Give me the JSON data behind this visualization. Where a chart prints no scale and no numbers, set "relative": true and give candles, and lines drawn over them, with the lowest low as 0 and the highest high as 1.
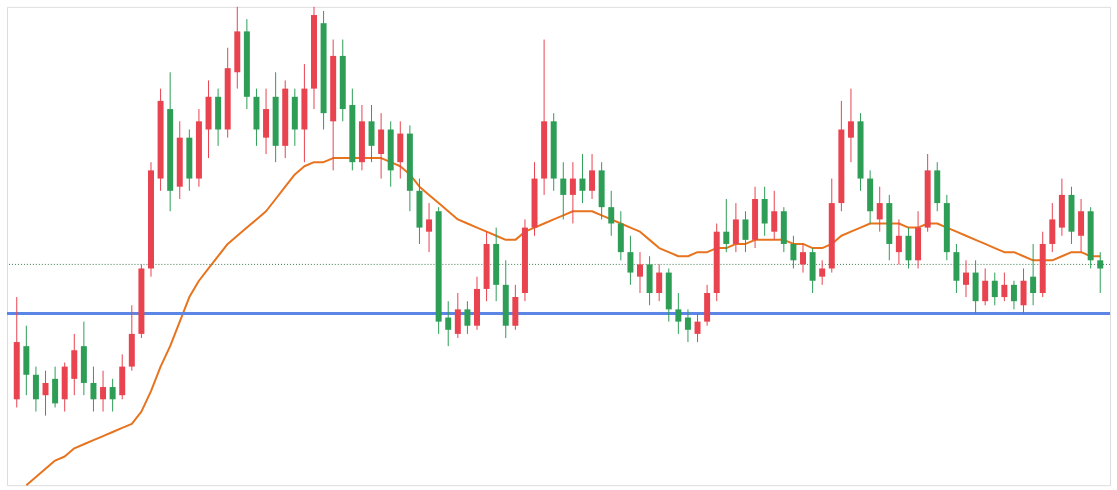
{
  "chart_data": {
    "type": "candlestick",
    "relative": true,
    "categories": [
      null,
      null,
      null,
      null,
      null,
      null,
      null,
      null,
      null,
      null,
      null,
      null,
      null,
      null,
      null,
      null,
      null,
      null,
      null,
      null,
      null,
      null,
      null,
      null,
      null,
      null,
      null,
      null,
      null,
      null,
      null,
      null,
      null,
      null,
      null,
      null,
      null,
      null,
      null,
      null,
      null,
      null,
      null,
      null,
      null,
      null,
      null,
      null,
      null,
      null,
      null,
      null,
      null,
      null,
      null,
      null,
      null,
      null,
      null,
      null,
      null,
      null,
      null,
      null,
      null,
      null,
      null,
      null,
      null,
      null,
      null,
      null,
      null,
      null,
      null,
      null,
      null,
      null,
      null,
      null,
      null,
      null,
      null,
      null,
      null,
      null,
      null,
      null,
      null,
      null,
      null,
      null,
      null,
      null,
      null,
      null,
      null,
      null,
      null,
      null,
      null,
      null,
      null,
      null,
      null,
      null,
      null,
      null,
      null,
      null,
      null,
      null,
      null,
      null
    ],
    "ohlc": [
      [
        0.04,
        0.29,
        0.02,
        0.18
      ],
      [
        0.17,
        0.22,
        0.05,
        0.1
      ],
      [
        0.1,
        0.12,
        0.01,
        0.04
      ],
      [
        0.05,
        0.11,
        0.0,
        0.08
      ],
      [
        0.09,
        0.12,
        0.02,
        0.03
      ],
      [
        0.04,
        0.13,
        0.01,
        0.12
      ],
      [
        0.09,
        0.2,
        0.05,
        0.16
      ],
      [
        0.17,
        0.23,
        0.05,
        0.08
      ],
      [
        0.08,
        0.12,
        0.01,
        0.04
      ],
      [
        0.04,
        0.11,
        0.01,
        0.07
      ],
      [
        0.07,
        0.09,
        0.01,
        0.04
      ],
      [
        0.05,
        0.15,
        0.04,
        0.12
      ],
      [
        0.12,
        0.27,
        0.11,
        0.2
      ],
      [
        0.2,
        0.37,
        0.19,
        0.36
      ],
      [
        0.36,
        0.62,
        0.34,
        0.6
      ],
      [
        0.58,
        0.8,
        0.55,
        0.77
      ],
      [
        0.75,
        0.84,
        0.5,
        0.55
      ],
      [
        0.56,
        0.72,
        0.53,
        0.68
      ],
      [
        0.68,
        0.7,
        0.55,
        0.58
      ],
      [
        0.58,
        0.75,
        0.56,
        0.72
      ],
      [
        0.7,
        0.82,
        0.63,
        0.78
      ],
      [
        0.78,
        0.8,
        0.66,
        0.7
      ],
      [
        0.7,
        0.9,
        0.68,
        0.85
      ],
      [
        0.84,
        1.0,
        0.8,
        0.94
      ],
      [
        0.94,
        0.97,
        0.75,
        0.78
      ],
      [
        0.78,
        0.8,
        0.66,
        0.7
      ],
      [
        0.68,
        0.8,
        0.64,
        0.75
      ],
      [
        0.78,
        0.84,
        0.62,
        0.66
      ],
      [
        0.66,
        0.82,
        0.63,
        0.8
      ],
      [
        0.78,
        0.8,
        0.66,
        0.7
      ],
      [
        0.7,
        0.86,
        0.62,
        0.8
      ],
      [
        0.8,
        1.0,
        0.75,
        0.98
      ],
      [
        0.96,
        0.99,
        0.7,
        0.74
      ],
      [
        0.72,
        0.92,
        0.6,
        0.88
      ],
      [
        0.88,
        0.92,
        0.72,
        0.75
      ],
      [
        0.76,
        0.8,
        0.6,
        0.62
      ],
      [
        0.62,
        0.76,
        0.6,
        0.72
      ],
      [
        0.72,
        0.76,
        0.62,
        0.66
      ],
      [
        0.64,
        0.74,
        0.58,
        0.7
      ],
      [
        0.7,
        0.72,
        0.56,
        0.6
      ],
      [
        0.62,
        0.72,
        0.58,
        0.69
      ],
      [
        0.69,
        0.71,
        0.5,
        0.55
      ],
      [
        0.55,
        0.58,
        0.42,
        0.46
      ],
      [
        0.45,
        0.52,
        0.4,
        0.48
      ],
      [
        0.5,
        0.51,
        0.2,
        0.23
      ],
      [
        0.24,
        0.28,
        0.17,
        0.21
      ],
      [
        0.2,
        0.3,
        0.19,
        0.26
      ],
      [
        0.26,
        0.28,
        0.2,
        0.22
      ],
      [
        0.22,
        0.34,
        0.21,
        0.31
      ],
      [
        0.31,
        0.45,
        0.28,
        0.42
      ],
      [
        0.42,
        0.46,
        0.28,
        0.32
      ],
      [
        0.32,
        0.38,
        0.19,
        0.22
      ],
      [
        0.22,
        0.32,
        0.21,
        0.29
      ],
      [
        0.3,
        0.48,
        0.28,
        0.46
      ],
      [
        0.46,
        0.62,
        0.44,
        0.58
      ],
      [
        0.58,
        0.92,
        0.54,
        0.72
      ],
      [
        0.72,
        0.74,
        0.55,
        0.58
      ],
      [
        0.58,
        0.62,
        0.48,
        0.54
      ],
      [
        0.54,
        0.62,
        0.47,
        0.58
      ],
      [
        0.58,
        0.64,
        0.52,
        0.55
      ],
      [
        0.55,
        0.64,
        0.53,
        0.6
      ],
      [
        0.6,
        0.62,
        0.48,
        0.51
      ],
      [
        0.51,
        0.55,
        0.44,
        0.47
      ],
      [
        0.47,
        0.5,
        0.38,
        0.4
      ],
      [
        0.4,
        0.44,
        0.32,
        0.35
      ],
      [
        0.34,
        0.4,
        0.3,
        0.37
      ],
      [
        0.37,
        0.39,
        0.27,
        0.3
      ],
      [
        0.3,
        0.37,
        0.28,
        0.35
      ],
      [
        0.35,
        0.36,
        0.23,
        0.26
      ],
      [
        0.26,
        0.3,
        0.2,
        0.23
      ],
      [
        0.24,
        0.26,
        0.18,
        0.21
      ],
      [
        0.2,
        0.25,
        0.18,
        0.23
      ],
      [
        0.23,
        0.32,
        0.22,
        0.3
      ],
      [
        0.3,
        0.47,
        0.28,
        0.45
      ],
      [
        0.45,
        0.53,
        0.4,
        0.42
      ],
      [
        0.42,
        0.52,
        0.4,
        0.48
      ],
      [
        0.48,
        0.5,
        0.4,
        0.43
      ],
      [
        0.43,
        0.56,
        0.41,
        0.53
      ],
      [
        0.53,
        0.56,
        0.44,
        0.47
      ],
      [
        0.45,
        0.55,
        0.43,
        0.5
      ],
      [
        0.5,
        0.51,
        0.4,
        0.42
      ],
      [
        0.42,
        0.44,
        0.36,
        0.38
      ],
      [
        0.37,
        0.42,
        0.35,
        0.4
      ],
      [
        0.4,
        0.41,
        0.3,
        0.33
      ],
      [
        0.34,
        0.38,
        0.32,
        0.36
      ],
      [
        0.36,
        0.58,
        0.35,
        0.52
      ],
      [
        0.52,
        0.77,
        0.5,
        0.7
      ],
      [
        0.68,
        0.8,
        0.62,
        0.72
      ],
      [
        0.72,
        0.74,
        0.55,
        0.58
      ],
      [
        0.58,
        0.6,
        0.47,
        0.5
      ],
      [
        0.48,
        0.56,
        0.45,
        0.52
      ],
      [
        0.52,
        0.54,
        0.38,
        0.42
      ],
      [
        0.4,
        0.48,
        0.37,
        0.44
      ],
      [
        0.44,
        0.46,
        0.36,
        0.38
      ],
      [
        0.38,
        0.5,
        0.36,
        0.46
      ],
      [
        0.46,
        0.64,
        0.45,
        0.6
      ],
      [
        0.6,
        0.62,
        0.5,
        0.52
      ],
      [
        0.52,
        0.54,
        0.38,
        0.4
      ],
      [
        0.4,
        0.42,
        0.3,
        0.33
      ],
      [
        0.32,
        0.38,
        0.29,
        0.35
      ],
      [
        0.35,
        0.38,
        0.25,
        0.28
      ],
      [
        0.28,
        0.36,
        0.27,
        0.33
      ],
      [
        0.33,
        0.35,
        0.27,
        0.29
      ],
      [
        0.29,
        0.35,
        0.28,
        0.32
      ],
      [
        0.32,
        0.33,
        0.26,
        0.28
      ],
      [
        0.27,
        0.36,
        0.25,
        0.33
      ],
      [
        0.34,
        0.42,
        0.27,
        0.3
      ],
      [
        0.3,
        0.45,
        0.29,
        0.42
      ],
      [
        0.42,
        0.52,
        0.4,
        0.48
      ],
      [
        0.46,
        0.58,
        0.44,
        0.54
      ],
      [
        0.54,
        0.56,
        0.42,
        0.45
      ],
      [
        0.44,
        0.53,
        0.4,
        0.5
      ],
      [
        0.5,
        0.51,
        0.36,
        0.38
      ],
      [
        0.38,
        0.4,
        0.3,
        0.36
      ]
    ],
    "colors": [
      "#e8434f",
      "#2e9e57",
      "#2e9e57",
      "#e8434f",
      "#2e9e57",
      "#e8434f",
      "#e8434f",
      "#2e9e57",
      "#2e9e57",
      "#e8434f",
      "#2e9e57",
      "#e8434f",
      "#e8434f",
      "#e8434f",
      "#e8434f",
      "#e8434f",
      "#2e9e57",
      "#e8434f",
      "#2e9e57",
      "#e8434f",
      "#e8434f",
      "#2e9e57",
      "#e8434f",
      "#e8434f",
      "#2e9e57",
      "#2e9e57",
      "#e8434f",
      "#2e9e57",
      "#e8434f",
      "#2e9e57",
      "#e8434f",
      "#e8434f",
      "#2e9e57",
      "#e8434f",
      "#2e9e57",
      "#2e9e57",
      "#e8434f",
      "#2e9e57",
      "#e8434f",
      "#2e9e57",
      "#e8434f",
      "#2e9e57",
      "#2e9e57",
      "#e8434f",
      "#2e9e57",
      "#2e9e57",
      "#e8434f",
      "#2e9e57",
      "#e8434f",
      "#e8434f",
      "#2e9e57",
      "#2e9e57",
      "#e8434f",
      "#e8434f",
      "#e8434f",
      "#e8434f",
      "#2e9e57",
      "#2e9e57",
      "#e8434f",
      "#2e9e57",
      "#e8434f",
      "#2e9e57",
      "#2e9e57",
      "#2e9e57",
      "#2e9e57",
      "#e8434f",
      "#2e9e57",
      "#e8434f",
      "#2e9e57",
      "#2e9e57",
      "#2e9e57",
      "#e8434f",
      "#e8434f",
      "#e8434f",
      "#2e9e57",
      "#e8434f",
      "#2e9e57",
      "#e8434f",
      "#2e9e57",
      "#e8434f",
      "#2e9e57",
      "#2e9e57",
      "#e8434f",
      "#2e9e57",
      "#e8434f",
      "#e8434f",
      "#e8434f",
      "#e8434f",
      "#2e9e57",
      "#2e9e57",
      "#e8434f",
      "#2e9e57",
      "#e8434f",
      "#2e9e57",
      "#e8434f",
      "#e8434f",
      "#2e9e57",
      "#2e9e57",
      "#2e9e57",
      "#e8434f",
      "#2e9e57",
      "#e8434f",
      "#2e9e57",
      "#e8434f",
      "#2e9e57",
      "#e8434f",
      "#2e9e57",
      "#e8434f",
      "#e8434f",
      "#e8434f",
      "#2e9e57",
      "#e8434f",
      "#2e9e57",
      "#2e9e57"
    ],
    "series": [
      {
        "type": "line",
        "color": "#e8731e",
        "values": [
          null,
          -0.17,
          -0.15,
          -0.13,
          -0.11,
          -0.1,
          -0.08,
          -0.07,
          -0.06,
          -0.05,
          -0.04,
          -0.03,
          -0.02,
          0.01,
          0.06,
          0.12,
          0.17,
          0.23,
          0.29,
          0.33,
          0.36,
          0.39,
          0.42,
          0.44,
          0.46,
          0.48,
          0.5,
          0.53,
          0.56,
          0.59,
          0.61,
          0.62,
          0.62,
          0.63,
          0.63,
          0.63,
          0.63,
          0.63,
          0.63,
          0.62,
          0.61,
          0.59,
          0.56,
          0.54,
          0.52,
          0.5,
          0.48,
          0.47,
          0.46,
          0.45,
          0.44,
          0.43,
          0.43,
          0.45,
          0.46,
          0.47,
          0.48,
          0.49,
          0.5,
          0.5,
          0.5,
          0.49,
          0.48,
          0.47,
          0.46,
          0.45,
          0.43,
          0.41,
          0.4,
          0.39,
          0.39,
          0.4,
          0.4,
          0.41,
          0.41,
          0.42,
          0.42,
          0.43,
          0.43,
          0.43,
          0.43,
          0.42,
          0.42,
          0.41,
          0.41,
          0.42,
          0.44,
          0.45,
          0.46,
          0.47,
          0.47,
          0.47,
          0.47,
          0.46,
          0.46,
          0.47,
          0.47,
          0.46,
          0.45,
          0.44,
          0.43,
          0.42,
          0.41,
          0.4,
          0.4,
          0.39,
          0.38,
          0.38,
          0.38,
          0.39,
          0.4,
          0.4,
          0.39,
          0.39
        ]
      }
    ],
    "ref_lines": [
      {
        "axis": "y",
        "value": 0.25,
        "color": "#5b86e5",
        "line_style": "solid"
      },
      {
        "axis": "y",
        "value": 0.37,
        "color": "#3d7a4a",
        "line_style": "dotted"
      }
    ]
  }
}
